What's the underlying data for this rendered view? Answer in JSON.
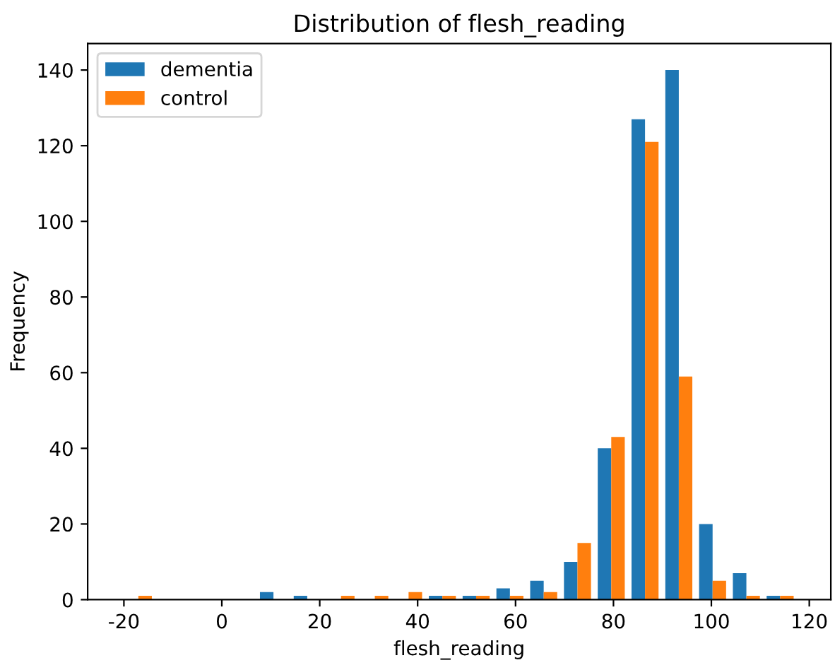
{
  "chart_data": {
    "type": "histogram",
    "title": "Distribution of flesh_reading",
    "xlabel": "flesh_reading",
    "ylabel": "Frequency",
    "bins": [
      -20.5,
      -13.6,
      -6.7,
      0.2,
      7.1,
      14.0,
      20.9,
      27.8,
      34.7,
      41.6,
      48.5,
      55.4,
      62.3,
      69.2,
      76.1,
      83.0,
      89.9,
      96.8,
      103.7,
      110.6,
      117.5
    ],
    "series": [
      {
        "name": "dementia",
        "color": "#1f77b4",
        "values": [
          0,
          0,
          0,
          0,
          2,
          1,
          0,
          0,
          0,
          1,
          1,
          3,
          5,
          10,
          40,
          127,
          140,
          20,
          7,
          1
        ]
      },
      {
        "name": "control",
        "color": "#ff7f0e",
        "values": [
          1,
          0,
          0,
          0,
          0,
          0,
          1,
          1,
          2,
          1,
          1,
          1,
          2,
          15,
          43,
          121,
          59,
          5,
          1,
          1
        ]
      }
    ],
    "xlim": [
      -27.4,
      124.4
    ],
    "xticks": [
      -20,
      0,
      20,
      40,
      60,
      80,
      100,
      120
    ],
    "ylim": [
      0,
      147
    ],
    "yticks": [
      0,
      20,
      40,
      60,
      80,
      100,
      120,
      140
    ],
    "legend": "top left"
  }
}
